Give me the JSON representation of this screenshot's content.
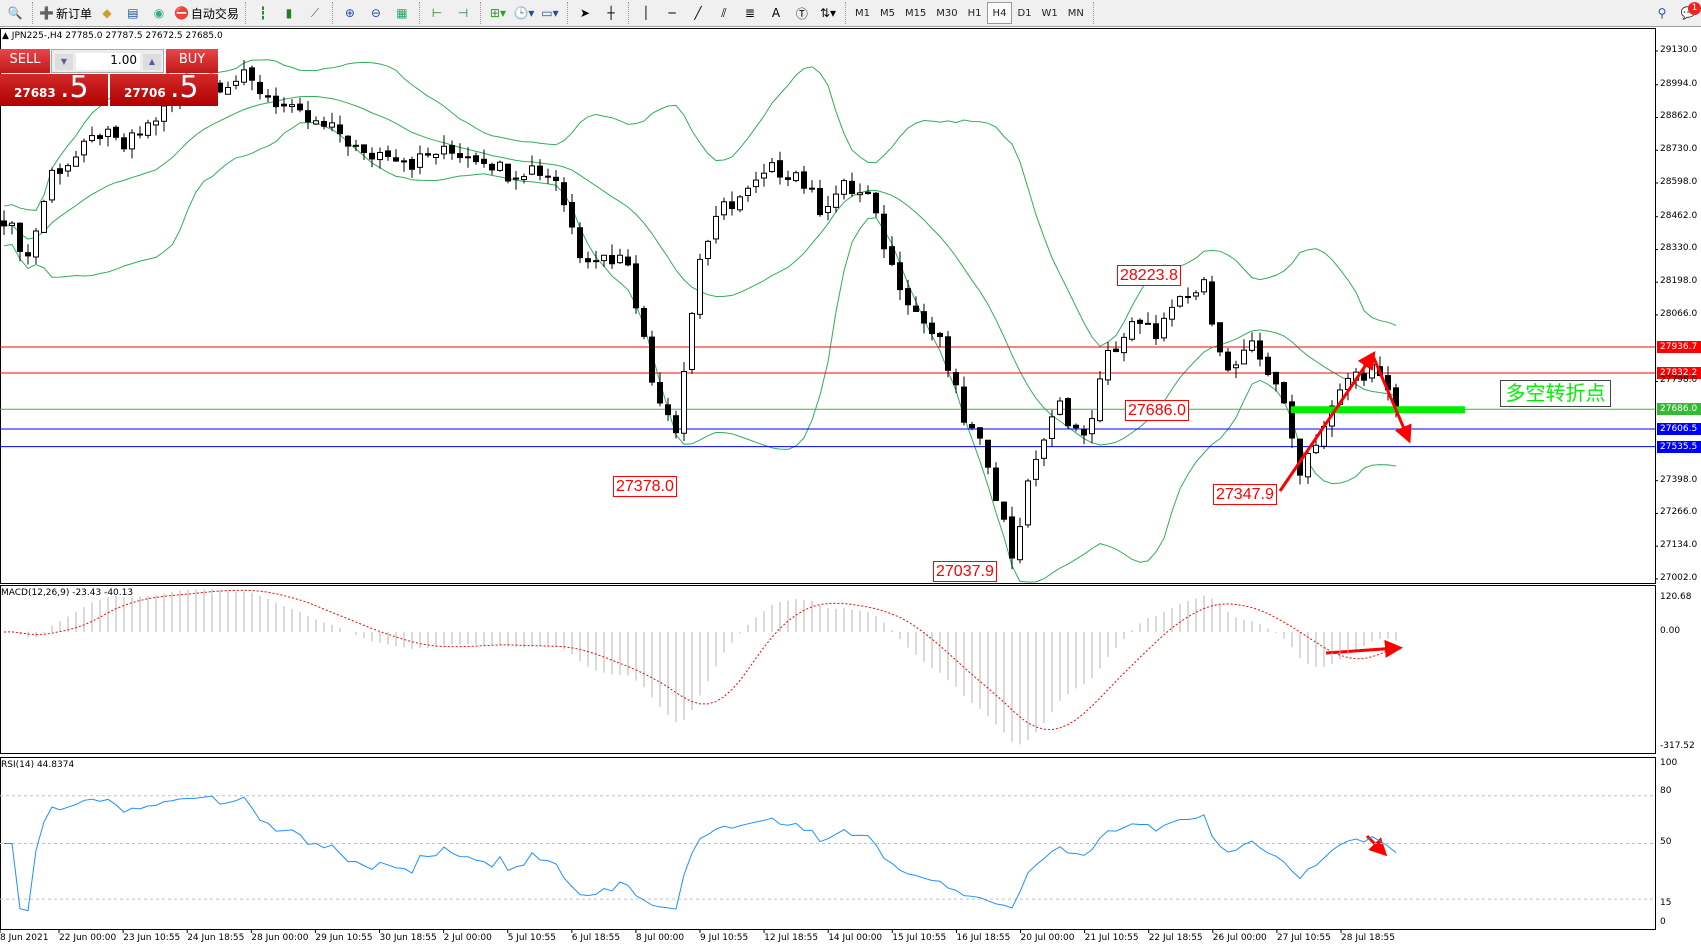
{
  "toolbar": {
    "new_order": "新订单",
    "auto_trading": "自动交易",
    "timeframes": [
      "M1",
      "M5",
      "M15",
      "M30",
      "H1",
      "H4",
      "D1",
      "W1",
      "MN"
    ],
    "active_timeframe": "H4",
    "notification_count": "1"
  },
  "chart": {
    "info": "JPN225-,H4  27785.0 27787.5 27672.5 27685.0",
    "symbol": "JPN225-",
    "period": "H4"
  },
  "trade_panel": {
    "sell_label": "SELL",
    "buy_label": "BUY",
    "lots": "1.00",
    "sell_price_main": "27683",
    "sell_price_big": ".5",
    "buy_price_main": "27706",
    "buy_price_big": ".5"
  },
  "price_axis": {
    "ticks": [
      "29130.0",
      "28994.0",
      "28862.0",
      "28730.0",
      "28598.0",
      "28462.0",
      "28330.0",
      "28198.0",
      "28066.0",
      "27798.0",
      "27398.0",
      "27266.0",
      "27134.0",
      "27002.0"
    ],
    "min": 27002.0,
    "max": 29130.0
  },
  "hlines": [
    {
      "price": "27936.7",
      "color": "#ff0000"
    },
    {
      "price": "27832.2",
      "color": "#ff0000"
    },
    {
      "price": "27686.0",
      "color": "#33bb33"
    },
    {
      "price": "27606.5",
      "color": "#0000ff"
    },
    {
      "price": "27535.5",
      "color": "#0000ff"
    }
  ],
  "price_labels": [
    "28223.8",
    "27686.0",
    "27378.0",
    "27347.9",
    "27037.9"
  ],
  "annotation_text": "多空转折点",
  "macd": {
    "title": "MACD(12,26,9) -23.43 -40.13",
    "axis": [
      "120.68",
      "0.00",
      "-317.52"
    ],
    "max": 120.68,
    "min": -317.52
  },
  "rsi": {
    "title": "RSI(14) 44.8374",
    "axis": [
      "100",
      "80",
      "50",
      "15",
      "0"
    ],
    "levels": [
      80,
      50,
      15
    ]
  },
  "time_axis": [
    "8 Jun 2021",
    "22 Jun 00:00",
    "23 Jun 10:55",
    "24 Jun 18:55",
    "28 Jun 00:00",
    "29 Jun 10:55",
    "30 Jun 18:55",
    "2 Jul 00:00",
    "5 Jul 10:55",
    "6 Jul 18:55",
    "8 Jul 00:00",
    "9 Jul 10:55",
    "12 Jul 18:55",
    "14 Jul 00:00",
    "15 Jul 10:55",
    "16 Jul 18:55",
    "20 Jul 00:00",
    "21 Jul 10:55",
    "22 Jul 18:55",
    "26 Jul 00:00",
    "27 Jul 10:55",
    "28 Jul 18:55"
  ],
  "colors": {
    "bands": "#2fae5a",
    "macd_signal": "#ff0000",
    "macd_hist": "#b4b4b4",
    "rsi": "#1e90ff",
    "annotation": "#ff0000",
    "pivot_bar": "#00ee00"
  },
  "chart_data": {
    "type": "candlestick",
    "approx_price_path": [
      28460,
      28300,
      28640,
      28700,
      28800,
      28740,
      28830,
      28920,
      28990,
      29000,
      29020,
      28950,
      28880,
      28830,
      28800,
      28700,
      28730,
      28680,
      28720,
      28720,
      28700,
      28640,
      28660,
      28620,
      28320,
      28300,
      28290,
      27800,
      27620,
      28300,
      28500,
      28560,
      28650,
      28640,
      28500,
      28580,
      28540,
      28260,
      28080,
      27950,
      27650,
      27480,
      27100,
      27500,
      27700,
      27560,
      27900,
      28020,
      28000,
      28110,
      28180,
      27830,
      27930,
      27800,
      27450,
      27620,
      27810,
      27850,
      27690
    ],
    "indicators": [
      "Bollinger Bands",
      "MACD(12,26,9)",
      "RSI(14)"
    ]
  }
}
